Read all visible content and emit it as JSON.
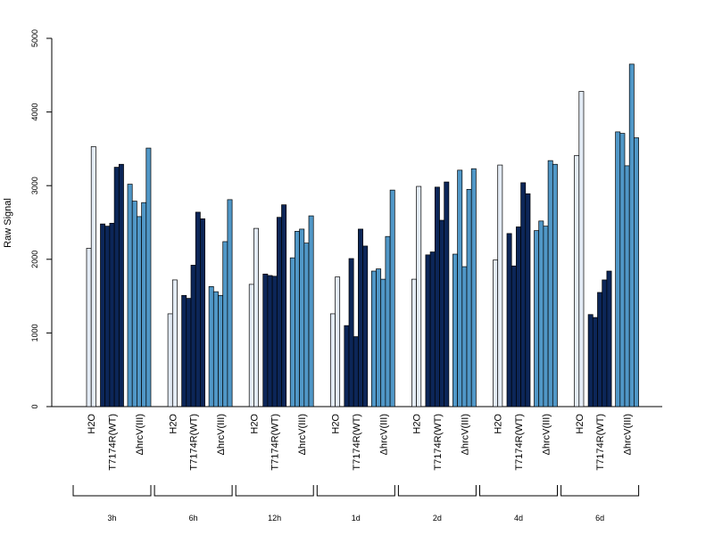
{
  "chart_data": {
    "type": "bar",
    "ylabel": "Raw Signal",
    "ylim": [
      0,
      5000
    ],
    "yticks": [
      "0",
      "1000",
      "2000",
      "3000",
      "4000",
      "5000"
    ],
    "conditions": [
      "H2O",
      "T7174R(WT)",
      "ΔhrcV(III)"
    ],
    "colors": {
      "H2O": "#e3ebf5",
      "T7174R(WT)": "#0c2658",
      "ΔhrcV(III)": "#5097c7"
    },
    "timepoints": [
      {
        "label": "3h",
        "values": [
          [
            2150,
            3530
          ],
          [
            2480,
            2450,
            2490,
            3250,
            3290
          ],
          [
            3020,
            2790,
            2580,
            2770,
            3510
          ]
        ]
      },
      {
        "label": "6h",
        "values": [
          [
            1260,
            1720
          ],
          [
            1510,
            1470,
            1920,
            2640,
            2550
          ],
          [
            1630,
            1560,
            1510,
            2240,
            2810
          ]
        ]
      },
      {
        "label": "12h",
        "values": [
          [
            1660,
            2420
          ],
          [
            1800,
            1780,
            1770,
            2570,
            2740
          ],
          [
            2020,
            2380,
            2410,
            2220,
            2590
          ]
        ]
      },
      {
        "label": "1d",
        "values": [
          [
            1260,
            1760
          ],
          [
            1100,
            2010,
            950,
            2410,
            2180
          ],
          [
            1840,
            1870,
            1730,
            2310,
            2940
          ]
        ]
      },
      {
        "label": "2d",
        "values": [
          [
            1730,
            2990
          ],
          [
            2060,
            2100,
            2980,
            2530,
            3050
          ],
          [
            2070,
            3210,
            1900,
            2950,
            3230
          ]
        ]
      },
      {
        "label": "4d",
        "values": [
          [
            1990,
            3280
          ],
          [
            2350,
            1910,
            2440,
            3040,
            2890
          ],
          [
            2390,
            2520,
            2450,
            3340,
            3290
          ]
        ]
      },
      {
        "label": "6d",
        "values": [
          [
            3410,
            4280
          ],
          [
            1250,
            1210,
            1550,
            1720,
            1840
          ],
          [
            3730,
            3710,
            3270,
            4650,
            3650
          ]
        ]
      }
    ]
  }
}
